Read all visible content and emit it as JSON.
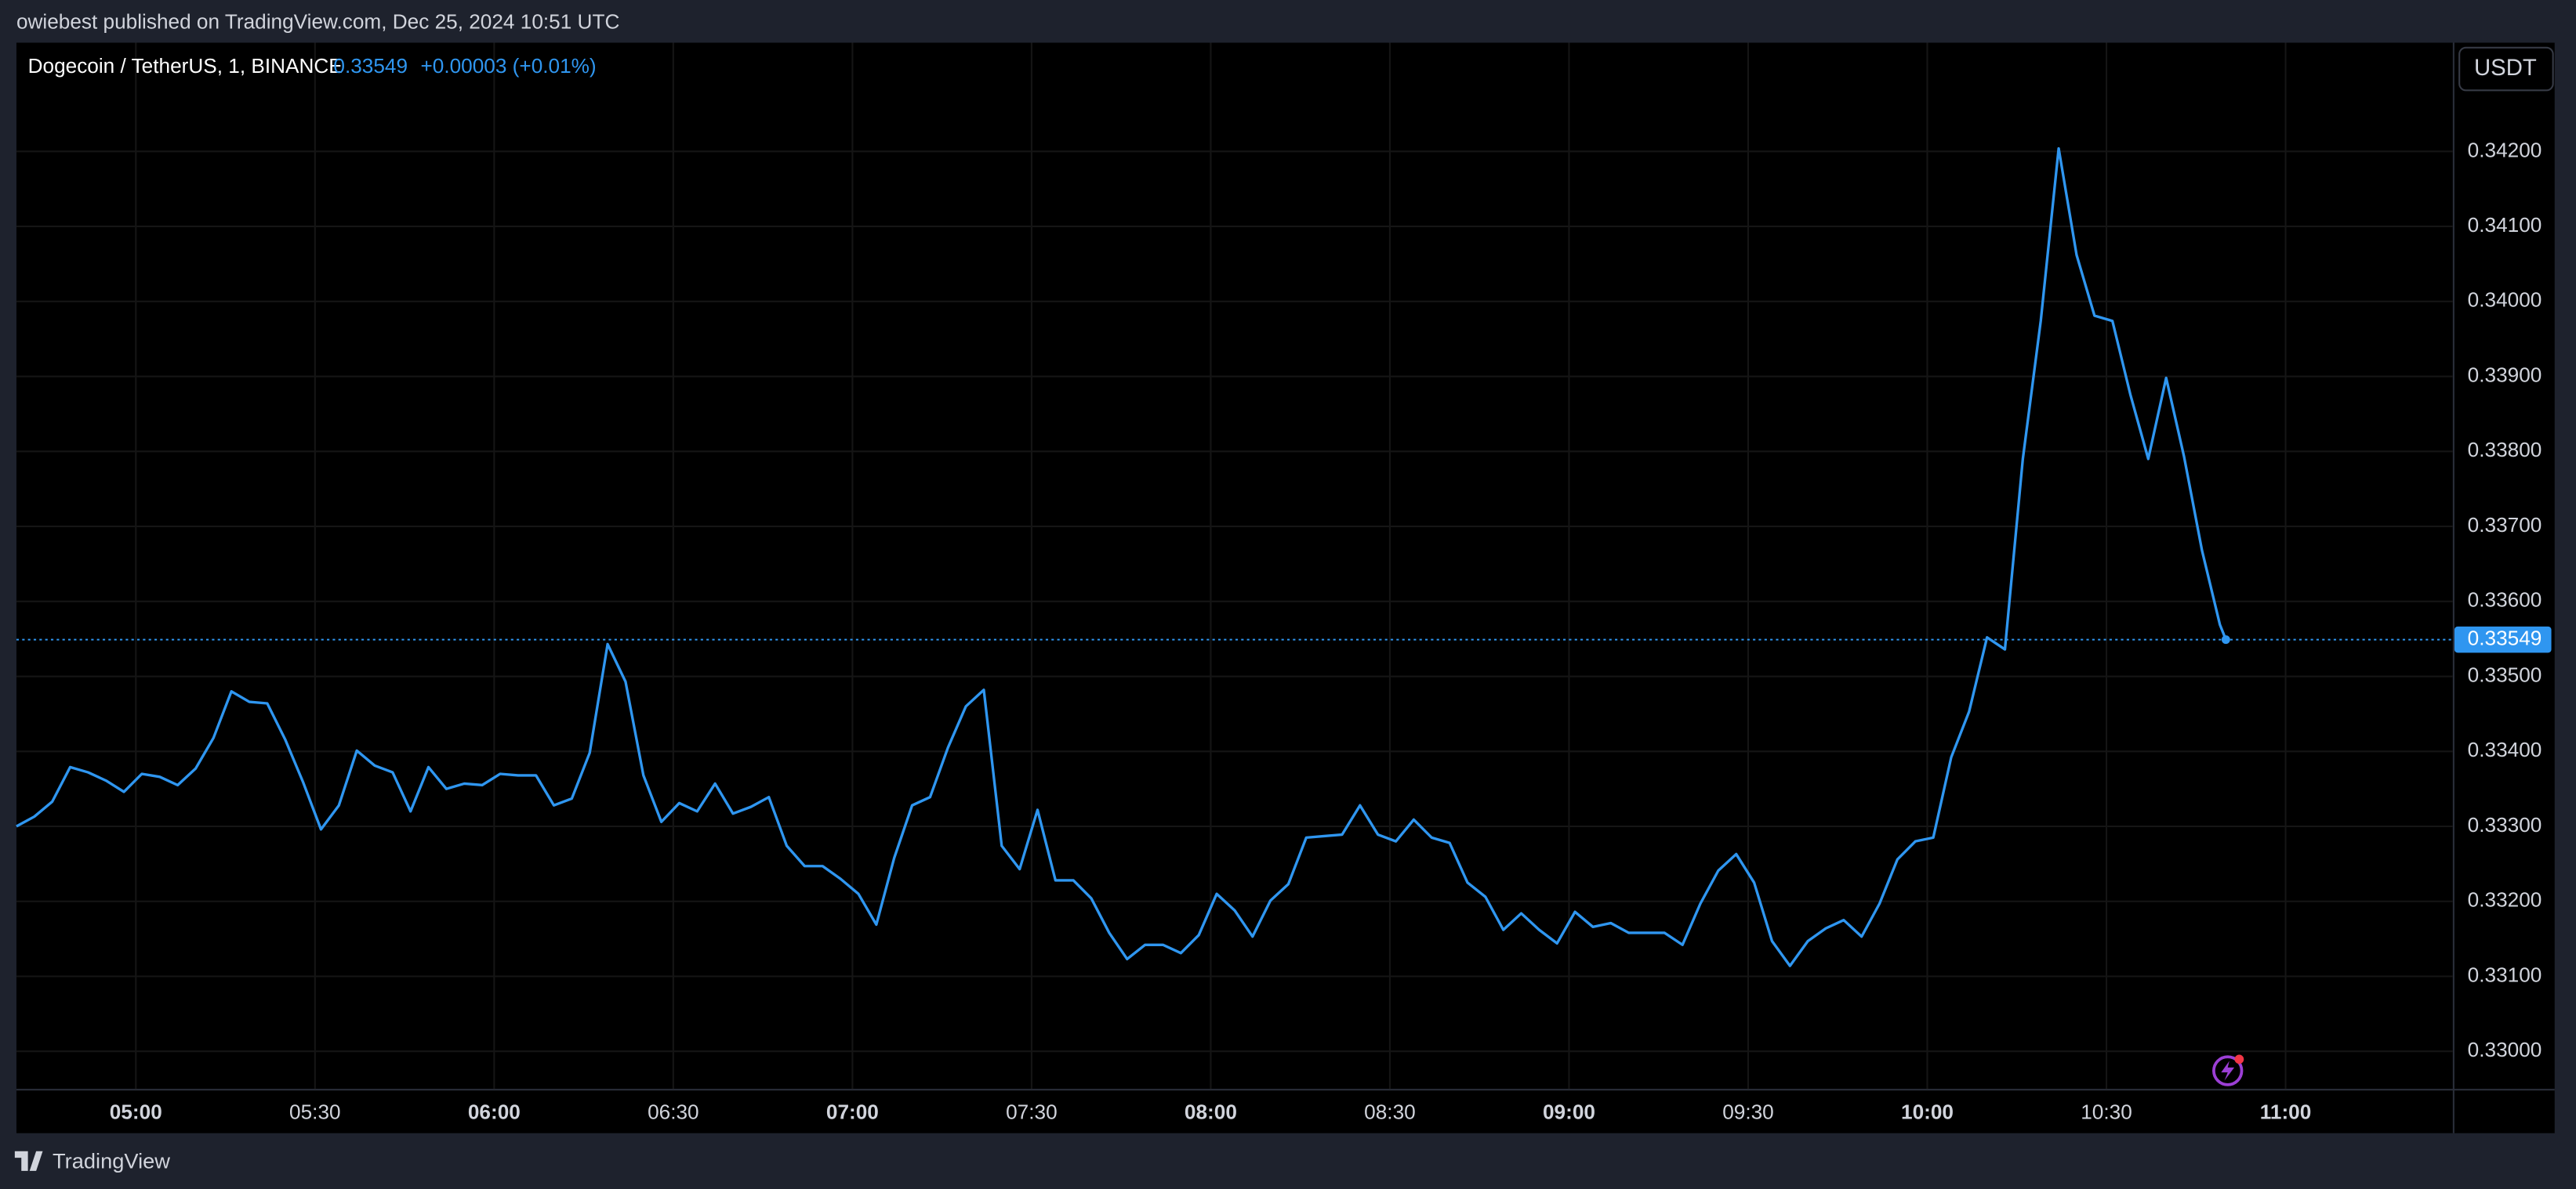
{
  "header": {
    "publisher": "owiebest published on TradingView.com, Dec 25, 2024 10:51 UTC"
  },
  "footer": {
    "brand": "TradingView"
  },
  "chart_data": {
    "type": "line",
    "title": "Dogecoin / TetherUS, 1, BINANCE",
    "price": "0.33549",
    "change": "+0.00003 (+0.01%)",
    "currency": "USDT",
    "last_price": {
      "value": 0.33549,
      "label": "0.33549"
    },
    "color": "#2f96f0",
    "grid": true,
    "xlim": [
      "04:40",
      "11:28"
    ],
    "ylim": [
      0.3295,
      0.34345
    ],
    "xticks": [
      "05:00",
      "05:30",
      "06:00",
      "06:30",
      "07:00",
      "07:30",
      "08:00",
      "08:30",
      "09:00",
      "09:30",
      "10:00",
      "10:30",
      "11:00"
    ],
    "yticks": [
      {
        "value": 0.33,
        "label": "0.33000"
      },
      {
        "value": 0.331,
        "label": "0.33100"
      },
      {
        "value": 0.332,
        "label": "0.33200"
      },
      {
        "value": 0.333,
        "label": "0.33300"
      },
      {
        "value": 0.334,
        "label": "0.33400"
      },
      {
        "value": 0.335,
        "label": "0.33500"
      },
      {
        "value": 0.336,
        "label": "0.33600"
      },
      {
        "value": 0.337,
        "label": "0.33700"
      },
      {
        "value": 0.338,
        "label": "0.33800"
      },
      {
        "value": 0.339,
        "label": "0.33900"
      },
      {
        "value": 0.34,
        "label": "0.34000"
      },
      {
        "value": 0.341,
        "label": "0.34100"
      },
      {
        "value": 0.342,
        "label": "0.34200"
      }
    ],
    "x": [
      "04:40",
      "04:43",
      "04:46",
      "04:49",
      "04:52",
      "04:55",
      "04:58",
      "05:01",
      "05:04",
      "05:07",
      "05:10",
      "05:13",
      "05:16",
      "05:19",
      "05:22",
      "05:25",
      "05:28",
      "05:31",
      "05:34",
      "05:37",
      "05:40",
      "05:43",
      "05:46",
      "05:49",
      "05:52",
      "05:55",
      "05:58",
      "06:01",
      "06:04",
      "06:07",
      "06:10",
      "06:13",
      "06:16",
      "06:19",
      "06:22",
      "06:25",
      "06:28",
      "06:31",
      "06:34",
      "06:37",
      "06:40",
      "06:43",
      "06:46",
      "06:49",
      "06:52",
      "06:55",
      "06:58",
      "07:01",
      "07:04",
      "07:07",
      "07:10",
      "07:13",
      "07:16",
      "07:19",
      "07:22",
      "07:25",
      "07:28",
      "07:31",
      "07:34",
      "07:37",
      "07:40",
      "07:43",
      "07:46",
      "07:49",
      "07:52",
      "07:55",
      "07:58",
      "08:01",
      "08:04",
      "08:07",
      "08:10",
      "08:13",
      "08:16",
      "08:19",
      "08:22",
      "08:25",
      "08:28",
      "08:31",
      "08:34",
      "08:37",
      "08:40",
      "08:43",
      "08:46",
      "08:49",
      "08:52",
      "08:55",
      "08:58",
      "09:01",
      "09:04",
      "09:07",
      "09:10",
      "09:13",
      "09:16",
      "09:19",
      "09:22",
      "09:25",
      "09:28",
      "09:31",
      "09:34",
      "09:37",
      "09:40",
      "09:43",
      "09:46",
      "09:49",
      "09:52",
      "09:55",
      "09:58",
      "10:01",
      "10:04",
      "10:07",
      "10:10",
      "10:13",
      "10:16",
      "10:19",
      "10:22",
      "10:25",
      "10:28",
      "10:31",
      "10:34",
      "10:37",
      "10:40",
      "10:43",
      "10:46",
      "10:49",
      "10:50"
    ],
    "values": [
      0.333,
      0.33313,
      0.33333,
      0.33379,
      0.33372,
      0.33361,
      0.33346,
      0.3337,
      0.33366,
      0.33355,
      0.33377,
      0.33418,
      0.3348,
      0.33466,
      0.33464,
      0.33416,
      0.33359,
      0.33296,
      0.33328,
      0.33401,
      0.33381,
      0.33372,
      0.3332,
      0.33379,
      0.3335,
      0.33357,
      0.33355,
      0.3337,
      0.33368,
      0.33368,
      0.33328,
      0.33337,
      0.33398,
      0.33543,
      0.33493,
      0.33368,
      0.33306,
      0.33331,
      0.3332,
      0.33357,
      0.33317,
      0.33326,
      0.33339,
      0.33274,
      0.33247,
      0.33247,
      0.3323,
      0.3321,
      0.33169,
      0.33258,
      0.33328,
      0.33339,
      0.33405,
      0.3346,
      0.33482,
      0.33274,
      0.33243,
      0.33322,
      0.33228,
      0.33228,
      0.33204,
      0.33158,
      0.33123,
      0.33142,
      0.33142,
      0.33131,
      0.33155,
      0.3321,
      0.33188,
      0.33153,
      0.33201,
      0.33223,
      0.33285,
      0.33287,
      0.33289,
      0.33328,
      0.33289,
      0.3328,
      0.33309,
      0.33285,
      0.33278,
      0.33225,
      0.33206,
      0.33162,
      0.33184,
      0.33162,
      0.33144,
      0.33186,
      0.33166,
      0.33171,
      0.33158,
      0.33158,
      0.33158,
      0.33142,
      0.33197,
      0.33241,
      0.33263,
      0.33225,
      0.33147,
      0.33114,
      0.33147,
      0.33164,
      0.33175,
      0.33153,
      0.33197,
      0.33256,
      0.3328,
      0.33285,
      0.33392,
      0.33453,
      0.33552,
      0.33536,
      0.3379,
      0.33974,
      0.34204,
      0.34062,
      0.33981,
      0.33974,
      0.33876,
      0.3379,
      0.33898,
      0.33793,
      0.33668,
      0.33569,
      0.33549
    ]
  }
}
